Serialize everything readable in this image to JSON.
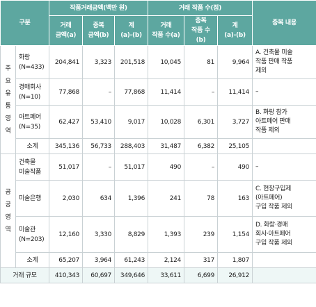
{
  "header": {
    "category": "구분",
    "amount_group": "작품거래금액(백만 원)",
    "count_group": "거래 작품 수(점)",
    "note_col": "중복 내용",
    "amount_cols": [
      "거래\n금액(a)",
      "중복\n금액(b)",
      "계\n(a)-(b)"
    ],
    "count_cols": [
      "거래\n작품 수(a)",
      "중복\n작품 수(b)",
      "계\n(a)-(b)"
    ]
  },
  "sections": [
    {
      "name_chars": [
        "주",
        "요",
        "유",
        "통",
        "영",
        "역"
      ],
      "rows": [
        {
          "label": "화랑\n(N=433)",
          "a1": "204,841",
          "b1": "3,323",
          "c1": "201,518",
          "a2": "10,045",
          "b2": "81",
          "c2": "9,964",
          "note": "A. 건축물 미술\n작품 판매 작품\n제외"
        },
        {
          "label": "경매회사\n(N=10)",
          "a1": "77,868",
          "b1": "–",
          "c1": "77,868",
          "a2": "11,414",
          "b2": "–",
          "c2": "11,414",
          "note": "–"
        },
        {
          "label": "아트페어\n(N=35)",
          "a1": "62,427",
          "b1": "53,410",
          "c1": "9,017",
          "a2": "10,028",
          "b2": "6,301",
          "c2": "3,727",
          "note": "B. 화랑 참가\n아트페어 판매\n작품 제외"
        },
        {
          "label": "소계",
          "a1": "345,136",
          "b1": "56,733",
          "c1": "288,403",
          "a2": "31,487",
          "b2": "6,382",
          "c2": "25,105",
          "note": ""
        }
      ]
    },
    {
      "name_chars": [
        "공",
        "공",
        "영",
        "역"
      ],
      "rows": [
        {
          "label": "건축물\n미술작품",
          "a1": "51,017",
          "b1": "–",
          "c1": "51,017",
          "a2": "490",
          "b2": "–",
          "c2": "490",
          "note": "–"
        },
        {
          "label": "미술은행",
          "a1": "2,030",
          "b1": "634",
          "c1": "1,396",
          "a2": "241",
          "b2": "78",
          "c2": "163",
          "note": "C. 현장구입제\n(아트페어)\n구입 작품 제외"
        },
        {
          "label": "미술관\n(N=203)",
          "a1": "12,160",
          "b1": "3,330",
          "c1": "8,829",
          "a2": "1,393",
          "b2": "239",
          "c2": "1,154",
          "note": "D. 화랑·경매\n회사·아트페어\n구입 작품 제외"
        },
        {
          "label": "소계",
          "a1": "65,207",
          "b1": "3,964",
          "c1": "61,243",
          "a2": "2,124",
          "b2": "317",
          "c2": "1,807",
          "note": ""
        }
      ]
    }
  ],
  "total": {
    "label": "거래 규모",
    "a1": "410,343",
    "b1": "60,697",
    "c1": "349,646",
    "a2": "33,611",
    "b2": "6,699",
    "c2": "26,912",
    "note": ""
  },
  "colors": {
    "header": "#5da7a0",
    "subtle": "#eef7f6",
    "border": "#c9d1d4"
  }
}
